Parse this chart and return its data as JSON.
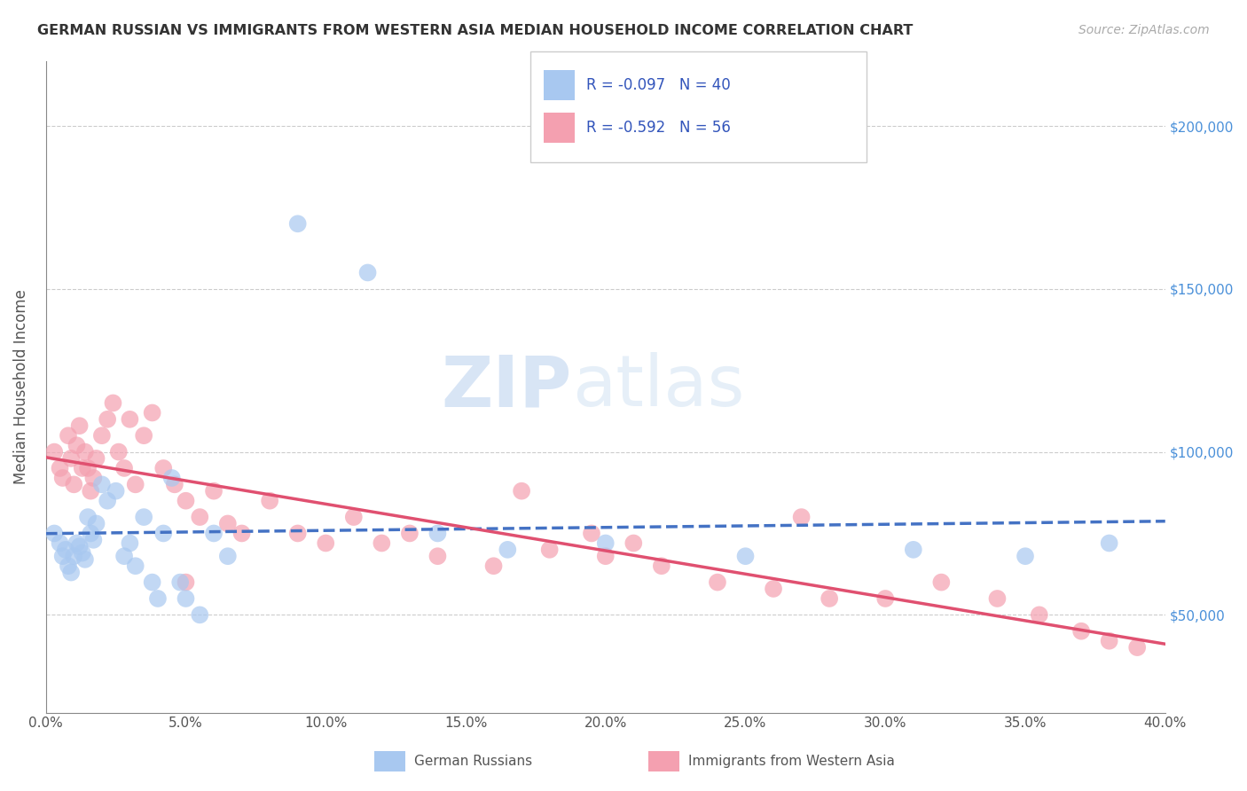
{
  "title": "GERMAN RUSSIAN VS IMMIGRANTS FROM WESTERN ASIA MEDIAN HOUSEHOLD INCOME CORRELATION CHART",
  "source": "Source: ZipAtlas.com",
  "ylabel": "Median Household Income",
  "y_ticks": [
    50000,
    100000,
    150000,
    200000
  ],
  "y_tick_labels": [
    "$50,000",
    "$100,000",
    "$150,000",
    "$200,000"
  ],
  "x_min": 0.0,
  "x_max": 0.4,
  "y_min": 20000,
  "y_max": 220000,
  "legend_label1": "R = -0.097   N = 40",
  "legend_label2": "R = -0.592   N = 56",
  "legend_color1": "#a8c8f0",
  "legend_color2": "#f4a0b0",
  "scatter_color1": "#a8c8f0",
  "scatter_color2": "#f4a0b0",
  "trend_color1": "#4472c4",
  "trend_color2": "#e05070",
  "watermark_zip": "ZIP",
  "watermark_atlas": "atlas",
  "bottom_label1": "German Russians",
  "bottom_label2": "Immigrants from Western Asia",
  "blue_x": [
    0.003,
    0.005,
    0.006,
    0.007,
    0.008,
    0.009,
    0.01,
    0.011,
    0.012,
    0.013,
    0.014,
    0.015,
    0.016,
    0.017,
    0.018,
    0.02,
    0.022,
    0.025,
    0.028,
    0.03,
    0.032,
    0.035,
    0.038,
    0.04,
    0.042,
    0.045,
    0.048,
    0.05,
    0.055,
    0.06,
    0.065,
    0.09,
    0.115,
    0.14,
    0.165,
    0.2,
    0.25,
    0.31,
    0.35,
    0.38
  ],
  "blue_y": [
    75000,
    72000,
    68000,
    70000,
    65000,
    63000,
    68000,
    72000,
    71000,
    69000,
    67000,
    80000,
    75000,
    73000,
    78000,
    90000,
    85000,
    88000,
    68000,
    72000,
    65000,
    80000,
    60000,
    55000,
    75000,
    92000,
    60000,
    55000,
    50000,
    75000,
    68000,
    170000,
    155000,
    75000,
    70000,
    72000,
    68000,
    70000,
    68000,
    72000
  ],
  "pink_x": [
    0.003,
    0.005,
    0.006,
    0.008,
    0.009,
    0.01,
    0.011,
    0.012,
    0.013,
    0.014,
    0.015,
    0.016,
    0.017,
    0.018,
    0.02,
    0.022,
    0.024,
    0.026,
    0.028,
    0.03,
    0.032,
    0.035,
    0.038,
    0.042,
    0.046,
    0.05,
    0.055,
    0.06,
    0.065,
    0.07,
    0.08,
    0.09,
    0.1,
    0.11,
    0.12,
    0.13,
    0.14,
    0.16,
    0.18,
    0.2,
    0.21,
    0.22,
    0.24,
    0.26,
    0.28,
    0.3,
    0.32,
    0.34,
    0.355,
    0.37,
    0.38,
    0.39,
    0.27,
    0.17,
    0.195,
    0.05
  ],
  "pink_y": [
    100000,
    95000,
    92000,
    105000,
    98000,
    90000,
    102000,
    108000,
    95000,
    100000,
    95000,
    88000,
    92000,
    98000,
    105000,
    110000,
    115000,
    100000,
    95000,
    110000,
    90000,
    105000,
    112000,
    95000,
    90000,
    85000,
    80000,
    88000,
    78000,
    75000,
    85000,
    75000,
    72000,
    80000,
    72000,
    75000,
    68000,
    65000,
    70000,
    68000,
    72000,
    65000,
    60000,
    58000,
    55000,
    55000,
    60000,
    55000,
    50000,
    45000,
    42000,
    40000,
    80000,
    88000,
    75000,
    60000
  ]
}
